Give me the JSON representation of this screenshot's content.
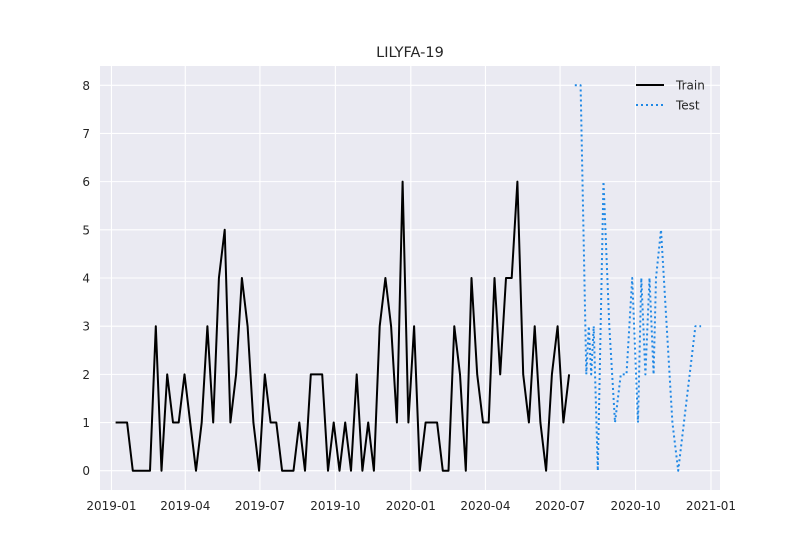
{
  "chart_data": {
    "type": "line",
    "title": "LILYFA-19",
    "xlabel": "",
    "ylabel": "",
    "x_range": [
      "2018-12-18",
      "2021-01-12"
    ],
    "ylim": [
      -0.4,
      8.4
    ],
    "grid": true,
    "legend_position": "top-right",
    "x_ticks": [
      "2019-01",
      "2019-04",
      "2019-07",
      "2019-10",
      "2020-01",
      "2020-04",
      "2020-07",
      "2020-10",
      "2021-01"
    ],
    "y_ticks": [
      0,
      1,
      2,
      3,
      4,
      5,
      6,
      7,
      8
    ],
    "series": [
      {
        "name": "Train",
        "color": "#000000",
        "style": "solid",
        "points": [
          [
            "2019-01-06",
            1
          ],
          [
            "2019-01-13",
            1
          ],
          [
            "2019-01-20",
            1
          ],
          [
            "2019-01-27",
            0
          ],
          [
            "2019-02-03",
            0
          ],
          [
            "2019-02-10",
            0
          ],
          [
            "2019-02-17",
            0
          ],
          [
            "2019-02-24",
            3
          ],
          [
            "2019-03-03",
            0
          ],
          [
            "2019-03-10",
            2
          ],
          [
            "2019-03-17",
            1
          ],
          [
            "2019-03-24",
            1
          ],
          [
            "2019-03-31",
            2
          ],
          [
            "2019-04-07",
            1
          ],
          [
            "2019-04-14",
            0
          ],
          [
            "2019-04-21",
            1
          ],
          [
            "2019-04-28",
            3
          ],
          [
            "2019-05-05",
            1
          ],
          [
            "2019-05-12",
            4
          ],
          [
            "2019-05-19",
            5
          ],
          [
            "2019-05-26",
            1
          ],
          [
            "2019-06-02",
            2
          ],
          [
            "2019-06-09",
            4
          ],
          [
            "2019-06-16",
            3
          ],
          [
            "2019-06-23",
            1
          ],
          [
            "2019-06-30",
            0
          ],
          [
            "2019-07-07",
            2
          ],
          [
            "2019-07-14",
            1
          ],
          [
            "2019-07-21",
            1
          ],
          [
            "2019-07-28",
            0
          ],
          [
            "2019-08-04",
            0
          ],
          [
            "2019-08-11",
            0
          ],
          [
            "2019-08-18",
            1
          ],
          [
            "2019-08-25",
            0
          ],
          [
            "2019-09-01",
            2
          ],
          [
            "2019-09-08",
            2
          ],
          [
            "2019-09-15",
            2
          ],
          [
            "2019-09-22",
            0
          ],
          [
            "2019-09-29",
            1
          ],
          [
            "2019-10-06",
            0
          ],
          [
            "2019-10-13",
            1
          ],
          [
            "2019-10-20",
            0
          ],
          [
            "2019-10-27",
            2
          ],
          [
            "2019-11-03",
            0
          ],
          [
            "2019-11-10",
            1
          ],
          [
            "2019-11-17",
            0
          ],
          [
            "2019-11-24",
            3
          ],
          [
            "2019-12-01",
            4
          ],
          [
            "2019-12-08",
            3
          ],
          [
            "2019-12-15",
            1
          ],
          [
            "2019-12-22",
            6
          ],
          [
            "2019-12-29",
            1
          ],
          [
            "2020-01-05",
            3
          ],
          [
            "2020-01-12",
            0
          ],
          [
            "2020-01-19",
            1
          ],
          [
            "2020-01-26",
            1
          ],
          [
            "2020-02-02",
            1
          ],
          [
            "2020-02-09",
            0
          ],
          [
            "2020-02-16",
            0
          ],
          [
            "2020-02-23",
            3
          ],
          [
            "2020-03-01",
            2
          ],
          [
            "2020-03-08",
            0
          ],
          [
            "2020-03-15",
            4
          ],
          [
            "2020-03-22",
            2
          ],
          [
            "2020-03-29",
            1
          ],
          [
            "2020-04-05",
            1
          ],
          [
            "2020-04-12",
            4
          ],
          [
            "2020-04-19",
            2
          ],
          [
            "2020-04-26",
            4
          ],
          [
            "2020-05-03",
            4
          ],
          [
            "2020-05-10",
            6
          ],
          [
            "2020-05-17",
            2
          ],
          [
            "2020-05-24",
            1
          ],
          [
            "2020-05-31",
            3
          ],
          [
            "2020-06-07",
            1
          ],
          [
            "2020-06-14",
            0
          ],
          [
            "2020-06-21",
            2
          ],
          [
            "2020-06-28",
            3
          ],
          [
            "2020-07-05",
            1
          ],
          [
            "2020-07-12",
            2
          ]
        ]
      },
      {
        "name": "Test",
        "color": "#1f88e5",
        "style": "dotted",
        "points": [
          [
            "2020-07-19",
            8
          ],
          [
            "2020-07-26",
            8
          ],
          [
            "2020-08-02",
            2
          ],
          [
            "2020-08-05",
            3
          ],
          [
            "2020-08-08",
            2
          ],
          [
            "2020-08-11",
            3
          ],
          [
            "2020-08-16",
            0
          ],
          [
            "2020-08-23",
            6
          ],
          [
            "2020-08-30",
            3
          ],
          [
            "2020-09-06",
            1
          ],
          [
            "2020-09-13",
            2
          ],
          [
            "2020-09-20",
            2
          ],
          [
            "2020-09-27",
            4
          ],
          [
            "2020-10-04",
            1
          ],
          [
            "2020-10-08",
            4
          ],
          [
            "2020-10-13",
            2
          ],
          [
            "2020-10-18",
            4
          ],
          [
            "2020-10-23",
            2
          ],
          [
            "2020-10-26",
            4
          ],
          [
            "2020-11-01",
            5
          ],
          [
            "2020-11-08",
            3
          ],
          [
            "2020-11-15",
            1
          ],
          [
            "2020-11-22",
            0
          ],
          [
            "2020-12-13",
            3
          ],
          [
            "2020-12-20",
            3
          ]
        ]
      }
    ]
  }
}
